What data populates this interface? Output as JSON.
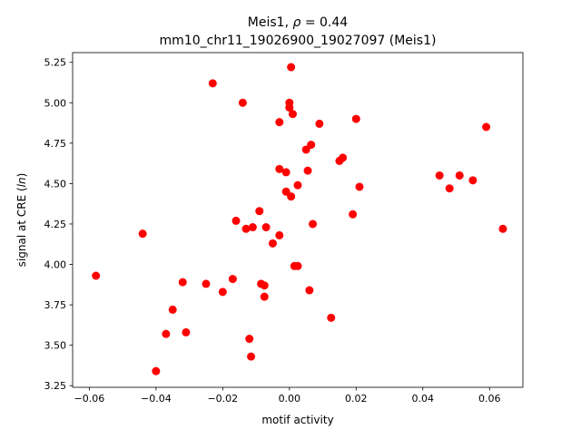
{
  "chart_data": {
    "type": "scatter",
    "title_line1": "Meis1, ρ = 0.44",
    "title_line2": "mm10_chr11_19026900_19027097 (Meis1)",
    "xlabel": "motif activity",
    "ylabel": "signal at CRE (ln)",
    "xlim": [
      -0.065,
      0.07
    ],
    "ylim": [
      3.24,
      5.31
    ],
    "xticks": [
      -0.06,
      -0.04,
      -0.02,
      0.0,
      0.02,
      0.04,
      0.06
    ],
    "xtick_labels": [
      "−0.06",
      "−0.04",
      "−0.02",
      "0.00",
      "0.02",
      "0.04",
      "0.06"
    ],
    "yticks": [
      3.25,
      3.5,
      3.75,
      4.0,
      4.25,
      4.5,
      4.75,
      5.0,
      5.25
    ],
    "ytick_labels": [
      "3.25",
      "3.50",
      "3.75",
      "4.00",
      "4.25",
      "4.50",
      "4.75",
      "5.00",
      "5.25"
    ],
    "grid": false,
    "marker_color": "#ff0000",
    "points": [
      {
        "x": -0.058,
        "y": 3.93
      },
      {
        "x": -0.044,
        "y": 4.19
      },
      {
        "x": -0.04,
        "y": 3.34
      },
      {
        "x": -0.037,
        "y": 3.57
      },
      {
        "x": -0.035,
        "y": 3.72
      },
      {
        "x": -0.032,
        "y": 3.89
      },
      {
        "x": -0.031,
        "y": 3.58
      },
      {
        "x": -0.025,
        "y": 3.88
      },
      {
        "x": -0.023,
        "y": 5.12
      },
      {
        "x": -0.02,
        "y": 3.83
      },
      {
        "x": -0.017,
        "y": 3.91
      },
      {
        "x": -0.016,
        "y": 4.27
      },
      {
        "x": -0.014,
        "y": 5.0
      },
      {
        "x": -0.013,
        "y": 4.22
      },
      {
        "x": -0.012,
        "y": 3.54
      },
      {
        "x": -0.0115,
        "y": 3.43
      },
      {
        "x": -0.011,
        "y": 4.23
      },
      {
        "x": -0.009,
        "y": 4.33
      },
      {
        "x": -0.0085,
        "y": 3.88
      },
      {
        "x": -0.0075,
        "y": 3.87
      },
      {
        "x": -0.0075,
        "y": 3.8
      },
      {
        "x": -0.007,
        "y": 4.23
      },
      {
        "x": -0.005,
        "y": 4.13
      },
      {
        "x": -0.003,
        "y": 4.88
      },
      {
        "x": -0.003,
        "y": 4.59
      },
      {
        "x": -0.003,
        "y": 4.18
      },
      {
        "x": -0.001,
        "y": 4.57
      },
      {
        "x": -0.001,
        "y": 4.45
      },
      {
        "x": 0.0,
        "y": 5.0
      },
      {
        "x": 0.0,
        "y": 4.97
      },
      {
        "x": 0.0005,
        "y": 5.22
      },
      {
        "x": 0.0005,
        "y": 4.42
      },
      {
        "x": 0.001,
        "y": 4.93
      },
      {
        "x": 0.0015,
        "y": 3.99
      },
      {
        "x": 0.0025,
        "y": 4.49
      },
      {
        "x": 0.0025,
        "y": 3.99
      },
      {
        "x": 0.005,
        "y": 4.71
      },
      {
        "x": 0.0055,
        "y": 4.58
      },
      {
        "x": 0.006,
        "y": 3.84
      },
      {
        "x": 0.0065,
        "y": 4.74
      },
      {
        "x": 0.007,
        "y": 4.25
      },
      {
        "x": 0.009,
        "y": 4.87
      },
      {
        "x": 0.0125,
        "y": 3.67
      },
      {
        "x": 0.015,
        "y": 4.64
      },
      {
        "x": 0.016,
        "y": 4.66
      },
      {
        "x": 0.019,
        "y": 4.31
      },
      {
        "x": 0.02,
        "y": 4.9
      },
      {
        "x": 0.021,
        "y": 4.48
      },
      {
        "x": 0.045,
        "y": 4.55
      },
      {
        "x": 0.048,
        "y": 4.47
      },
      {
        "x": 0.051,
        "y": 4.55
      },
      {
        "x": 0.055,
        "y": 4.52
      },
      {
        "x": 0.059,
        "y": 4.85
      },
      {
        "x": 0.064,
        "y": 4.22
      }
    ]
  }
}
